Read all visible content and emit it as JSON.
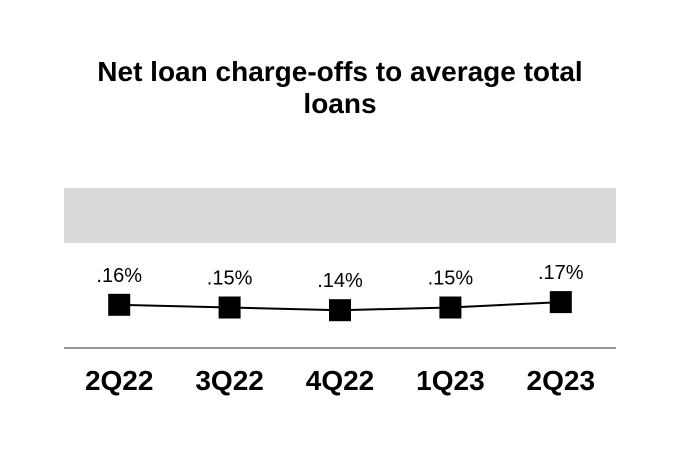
{
  "title": "Net loan charge-offs to average total loans",
  "chart_data": {
    "type": "line",
    "title": "Net loan charge-offs to average total loans",
    "categories": [
      "2Q22",
      "3Q22",
      "4Q22",
      "1Q23",
      "2Q23"
    ],
    "series": [
      {
        "name": "Net loan charge-offs to average total loans",
        "values": [
          0.16,
          0.15,
          0.14,
          0.15,
          0.17
        ],
        "labels": [
          ".16%",
          ".15%",
          ".14%",
          ".15%",
          ".17%"
        ]
      }
    ],
    "xlabel": "",
    "ylabel": "",
    "unit": "%",
    "baseline": 0,
    "grid": false,
    "legend": "none",
    "marker": "square",
    "colors": {
      "series": "#000000",
      "data_label": "#000000",
      "category_label": "#000000",
      "highlight_band": "#d9d9d9",
      "axis_line": "#969696",
      "title": "#000000",
      "background": "#ffffff"
    }
  }
}
